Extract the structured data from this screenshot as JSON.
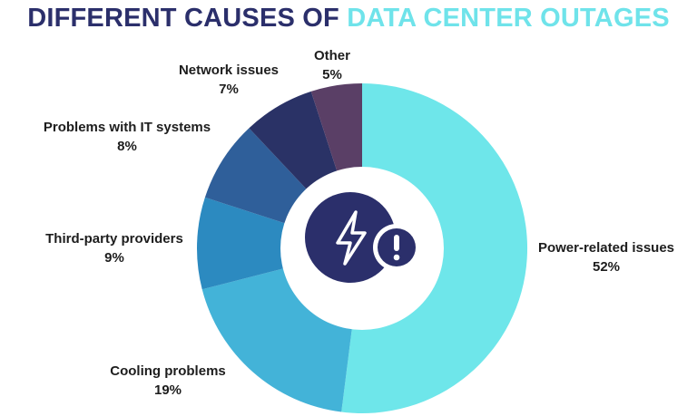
{
  "title": {
    "part1": "DIFFERENT CAUSES OF",
    "part2": "DATA CENTER OUTAGES",
    "color1": "#2b2f6b",
    "color2": "#6fe3ea"
  },
  "icons": {
    "center_left": "lightning-bolt-icon",
    "center_right": "exclamation-icon"
  },
  "chart_data": {
    "type": "pie",
    "donut": true,
    "title": "DIFFERENT CAUSES OF DATA CENTER OUTAGES",
    "slices": [
      {
        "label": "Power-related issues",
        "value": 52,
        "value_label": "52%",
        "color": "#6ee6ea"
      },
      {
        "label": "Cooling problems",
        "value": 19,
        "value_label": "19%",
        "color": "#43b3d8"
      },
      {
        "label": "Third-party providers",
        "value": 9,
        "value_label": "9%",
        "color": "#2c8ac0"
      },
      {
        "label": "Problems with IT systems",
        "value": 8,
        "value_label": "8%",
        "color": "#2f5f9a"
      },
      {
        "label": "Network issues",
        "value": 7,
        "value_label": "7%",
        "color": "#2a3266"
      },
      {
        "label": "Other",
        "value": 5,
        "value_label": "5%",
        "color": "#5a3f66"
      }
    ]
  }
}
